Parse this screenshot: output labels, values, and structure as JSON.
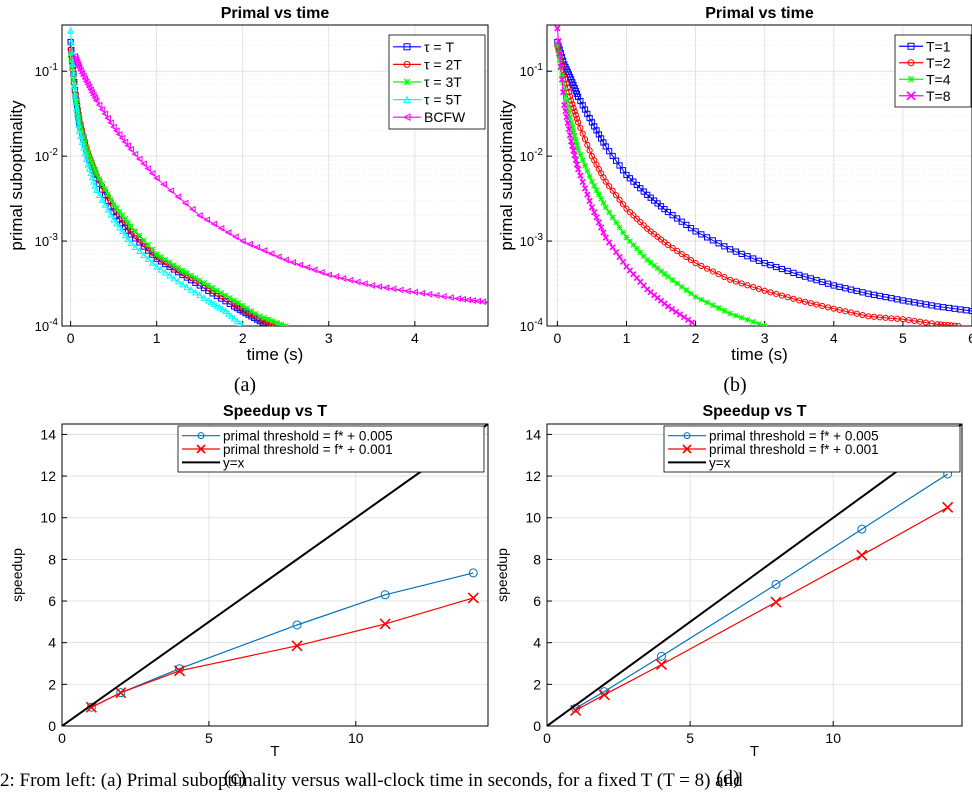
{
  "chart_data": [
    {
      "type": "line",
      "panel_label": "(a)",
      "title": "Primal vs time",
      "xlabel": "time (s)",
      "ylabel": "primal suboptimality",
      "yscale": "log",
      "xlim": [
        -0.1,
        4.85
      ],
      "ylim": [
        0.0001,
        0.35
      ],
      "xticks": [
        "0",
        "1",
        "2",
        "3",
        "4"
      ],
      "yticks": [
        "10-4",
        "10-3",
        "10-2",
        "10-1"
      ],
      "grid": true,
      "legend_position": "top-right",
      "series": [
        {
          "name": "τ = T",
          "color": "#0000ff",
          "marker": "square",
          "x": [
            0,
            0.05,
            0.1,
            0.2,
            0.3,
            0.5,
            0.7,
            1.0,
            1.3,
            1.6,
            1.9,
            2.1,
            2.3
          ],
          "y": [
            0.22,
            0.06,
            0.025,
            0.01,
            0.0055,
            0.0022,
            0.0012,
            0.00062,
            0.0004,
            0.00026,
            0.00017,
            0.00013,
            0.0001
          ]
        },
        {
          "name": "τ = 2T",
          "color": "#ff0000",
          "marker": "circle",
          "x": [
            0,
            0.05,
            0.1,
            0.2,
            0.3,
            0.5,
            0.7,
            1.0,
            1.3,
            1.6,
            1.9,
            2.2,
            2.4
          ],
          "y": [
            0.18,
            0.06,
            0.028,
            0.011,
            0.006,
            0.0025,
            0.0013,
            0.00065,
            0.00042,
            0.00028,
            0.00018,
            0.00012,
            0.0001
          ]
        },
        {
          "name": "τ = 3T",
          "color": "#00ff00",
          "marker": "star",
          "x": [
            0,
            0.05,
            0.1,
            0.2,
            0.3,
            0.5,
            0.7,
            1.0,
            1.3,
            1.6,
            1.9,
            2.2,
            2.5
          ],
          "y": [
            0.16,
            0.055,
            0.026,
            0.011,
            0.0062,
            0.0027,
            0.0015,
            0.0007,
            0.00045,
            0.0003,
            0.0002,
            0.00013,
            0.0001
          ]
        },
        {
          "name": "τ = 5T",
          "color": "#00ffff",
          "marker": "triangle-up",
          "x": [
            0,
            0.05,
            0.1,
            0.2,
            0.3,
            0.5,
            0.7,
            1.0,
            1.3,
            1.6,
            1.8,
            2.0
          ],
          "y": [
            0.3,
            0.05,
            0.02,
            0.008,
            0.004,
            0.0018,
            0.00095,
            0.0005,
            0.00031,
            0.0002,
            0.00015,
            0.0001
          ]
        },
        {
          "name": "BCFW",
          "color": "#ff00ff",
          "marker": "triangle-left",
          "x": [
            0.05,
            0.1,
            0.2,
            0.3,
            0.5,
            0.7,
            1.0,
            1.5,
            2.0,
            2.5,
            3.0,
            3.5,
            4.0,
            4.5,
            4.85
          ],
          "y": [
            0.15,
            0.11,
            0.07,
            0.045,
            0.022,
            0.012,
            0.0055,
            0.002,
            0.001,
            0.0006,
            0.0004,
            0.0003,
            0.00025,
            0.00021,
            0.00019
          ]
        }
      ]
    },
    {
      "type": "line",
      "panel_label": "(b)",
      "title": "Primal vs time",
      "xlabel": "time (s)",
      "ylabel": "primal suboptimality",
      "yscale": "log",
      "xlim": [
        -0.15,
        6
      ],
      "ylim": [
        0.0001,
        0.35
      ],
      "xticks": [
        "0",
        "1",
        "2",
        "3",
        "4",
        "5",
        "6"
      ],
      "yticks": [
        "10-4",
        "10-3",
        "10-2",
        "10-1"
      ],
      "grid": true,
      "legend_position": "top-right",
      "series": [
        {
          "name": "T=1",
          "color": "#0000ff",
          "marker": "square",
          "x": [
            0,
            0.1,
            0.2,
            0.3,
            0.5,
            0.7,
            1.0,
            1.3,
            1.6,
            2.0,
            2.5,
            3.0,
            3.5,
            4.0,
            4.5,
            5.0,
            5.5,
            6.0
          ],
          "y": [
            0.22,
            0.12,
            0.08,
            0.05,
            0.025,
            0.013,
            0.006,
            0.0035,
            0.0022,
            0.0013,
            0.0008,
            0.00055,
            0.0004,
            0.0003,
            0.00024,
            0.0002,
            0.00017,
            0.00015
          ]
        },
        {
          "name": "T=2",
          "color": "#ff0000",
          "marker": "circle",
          "x": [
            0,
            0.1,
            0.2,
            0.3,
            0.5,
            0.7,
            1.0,
            1.3,
            1.6,
            2.0,
            2.5,
            3.0,
            3.5,
            4.0,
            4.5,
            5.0,
            5.5,
            5.8
          ],
          "y": [
            0.2,
            0.09,
            0.045,
            0.025,
            0.01,
            0.005,
            0.0024,
            0.0014,
            0.0009,
            0.00055,
            0.00035,
            0.00026,
            0.0002,
            0.00016,
            0.00013,
            0.00012,
            0.000105,
            0.0001
          ]
        },
        {
          "name": "T=4",
          "color": "#00ff00",
          "marker": "star",
          "x": [
            0,
            0.1,
            0.2,
            0.3,
            0.5,
            0.7,
            1.0,
            1.3,
            1.6,
            2.0,
            2.5,
            3.0
          ],
          "y": [
            0.2,
            0.06,
            0.025,
            0.012,
            0.005,
            0.0025,
            0.0011,
            0.0006,
            0.00038,
            0.00022,
            0.00014,
            0.0001
          ]
        },
        {
          "name": "T=8",
          "color": "#ff00ff",
          "marker": "x",
          "x": [
            0,
            0.1,
            0.2,
            0.3,
            0.5,
            0.7,
            1.0,
            1.3,
            1.6,
            1.95
          ],
          "y": [
            0.32,
            0.04,
            0.015,
            0.007,
            0.0025,
            0.0011,
            0.0005,
            0.00027,
            0.00017,
            0.00011
          ]
        }
      ]
    },
    {
      "type": "line",
      "panel_label": "(c)",
      "title": "Speedup vs T",
      "xlabel": "T",
      "ylabel": "speedup",
      "xlim": [
        0,
        14.5
      ],
      "ylim": [
        0,
        14.5
      ],
      "xticks": [
        "0",
        "5",
        "10"
      ],
      "yticks": [
        "0",
        "2",
        "4",
        "6",
        "8",
        "10",
        "12",
        "14"
      ],
      "grid": true,
      "legend_position": "top-right",
      "series": [
        {
          "name": "primal threshold = f* + 0.005",
          "color": "#0072bd",
          "marker": "circle",
          "x": [
            1,
            2,
            4,
            8,
            11,
            14
          ],
          "y": [
            0.9,
            1.6,
            2.75,
            4.85,
            6.3,
            7.35
          ]
        },
        {
          "name": "primal threshold = f* + 0.001",
          "color": "#ff0000",
          "marker": "x",
          "x": [
            1,
            2,
            4,
            8,
            11,
            14
          ],
          "y": [
            0.9,
            1.6,
            2.65,
            3.85,
            4.9,
            6.15
          ]
        },
        {
          "name": "y=x",
          "color": "#000000",
          "marker": "none",
          "x": [
            0,
            14.5
          ],
          "y": [
            0,
            14.5
          ]
        }
      ]
    },
    {
      "type": "line",
      "panel_label": "(d)",
      "title": "Speedup vs T",
      "xlabel": "T",
      "ylabel": "speedup",
      "xlim": [
        0,
        14.5
      ],
      "ylim": [
        0,
        14.5
      ],
      "xticks": [
        "0",
        "5",
        "10"
      ],
      "yticks": [
        "0",
        "2",
        "4",
        "6",
        "8",
        "10",
        "12",
        "14"
      ],
      "grid": true,
      "legend_position": "top-right",
      "series": [
        {
          "name": "primal threshold = f* + 0.005",
          "color": "#0072bd",
          "marker": "circle",
          "x": [
            1,
            2,
            4,
            8,
            11,
            14
          ],
          "y": [
            0.85,
            1.65,
            3.35,
            6.8,
            9.45,
            12.1
          ]
        },
        {
          "name": "primal threshold = f* + 0.001",
          "color": "#ff0000",
          "marker": "x",
          "x": [
            1,
            2,
            4,
            8,
            11,
            14
          ],
          "y": [
            0.75,
            1.5,
            2.95,
            5.95,
            8.2,
            10.5
          ]
        },
        {
          "name": "y=x",
          "color": "#000000",
          "marker": "none",
          "x": [
            0,
            14.5
          ],
          "y": [
            0,
            14.5
          ]
        }
      ]
    }
  ],
  "caption": "2: From left: (a) Primal suboptimality versus wall-clock time in seconds, for a fixed T (T = 8) and"
}
